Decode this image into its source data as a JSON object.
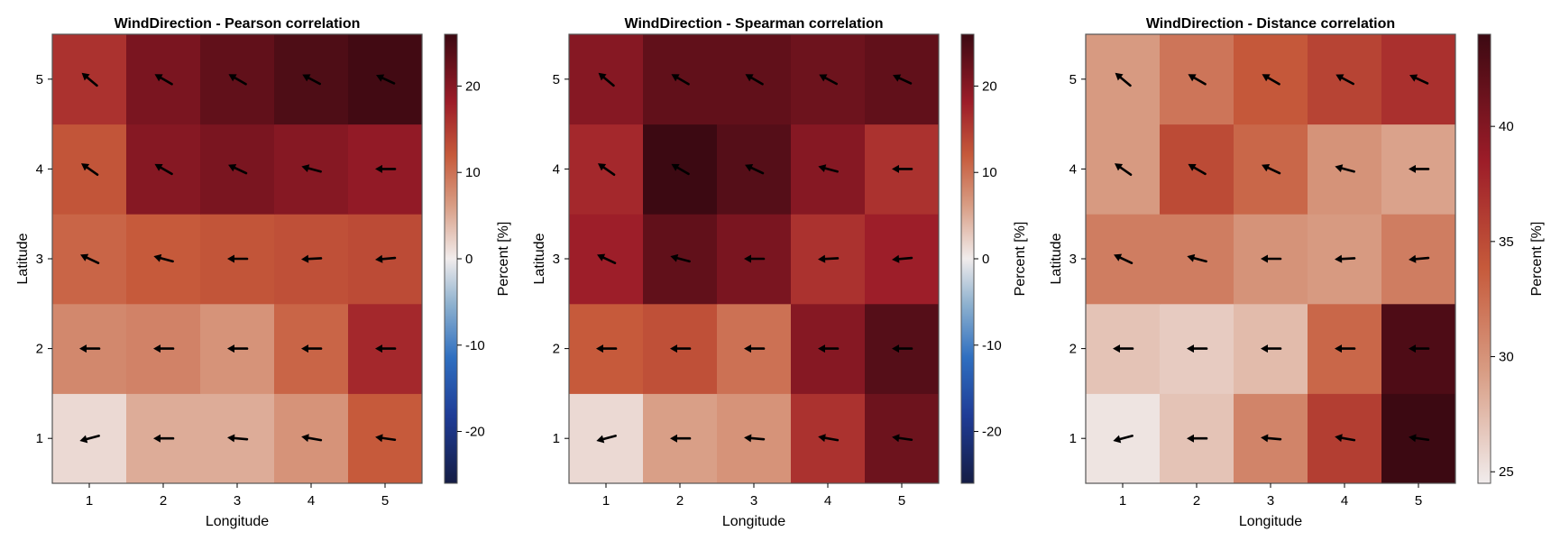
{
  "chart_data": [
    {
      "type": "heatmap",
      "title": "WindDirection - Pearson correlation",
      "xlabel": "Longitude",
      "ylabel": "Latitude",
      "colorbar_label": "Percent [%]",
      "x": [
        1,
        2,
        3,
        4,
        5
      ],
      "y": [
        1,
        2,
        3,
        4,
        5
      ],
      "colormap": "balance",
      "clim": [
        -26,
        26
      ],
      "colorbar_ticks": [
        -20,
        -10,
        0,
        10,
        20
      ],
      "values": [
        [
          1.5,
          5,
          5,
          7,
          12
        ],
        [
          8,
          8.5,
          7,
          11,
          17
        ],
        [
          11,
          12,
          12.5,
          13,
          13.5
        ],
        [
          12.5,
          20,
          21,
          20,
          19
        ],
        [
          16,
          21,
          23,
          24.5,
          25.5
        ]
      ],
      "arrow_angles_deg": [
        [
          195,
          180,
          175,
          170,
          172
        ],
        [
          180,
          180,
          180,
          180,
          180
        ],
        [
          155,
          165,
          180,
          183,
          185
        ],
        [
          145,
          150,
          155,
          165,
          180
        ],
        [
          140,
          150,
          150,
          152,
          155
        ]
      ]
    },
    {
      "type": "heatmap",
      "title": "WindDirection - Spearman correlation",
      "xlabel": "Longitude",
      "ylabel": "Latitude",
      "colorbar_label": "Percent [%]",
      "x": [
        1,
        2,
        3,
        4,
        5
      ],
      "y": [
        1,
        2,
        3,
        4,
        5
      ],
      "colormap": "balance",
      "clim": [
        -26,
        26
      ],
      "colorbar_ticks": [
        -20,
        -10,
        0,
        10,
        20
      ],
      "values": [
        [
          1.5,
          6,
          7,
          16,
          22
        ],
        [
          12,
          13,
          10,
          20,
          24
        ],
        [
          18,
          23,
          21,
          16,
          18
        ],
        [
          17,
          26,
          24,
          20,
          16
        ],
        [
          20,
          23,
          23,
          22,
          23
        ]
      ],
      "arrow_angles_deg": [
        [
          195,
          180,
          175,
          170,
          172
        ],
        [
          180,
          180,
          180,
          180,
          180
        ],
        [
          155,
          165,
          180,
          183,
          185
        ],
        [
          145,
          150,
          155,
          165,
          180
        ],
        [
          140,
          150,
          150,
          152,
          155
        ]
      ]
    },
    {
      "type": "heatmap",
      "title": "WindDirection - Distance correlation",
      "xlabel": "Longitude",
      "ylabel": "Latitude",
      "colorbar_label": "Percent [%]",
      "x": [
        1,
        2,
        3,
        4,
        5
      ],
      "y": [
        1,
        2,
        3,
        4,
        5
      ],
      "colormap": "balance_upper",
      "clim": [
        24.5,
        44
      ],
      "colorbar_ticks": [
        25,
        30,
        35,
        40
      ],
      "values": [
        [
          25,
          27,
          31,
          36,
          44
        ],
        [
          27,
          26.5,
          27.5,
          33,
          43
        ],
        [
          31.5,
          31.5,
          30,
          29.5,
          31.5
        ],
        [
          29.5,
          35,
          33,
          30,
          29
        ],
        [
          29.5,
          32,
          34,
          35.5,
          37
        ]
      ],
      "arrow_angles_deg": [
        [
          195,
          180,
          175,
          170,
          172
        ],
        [
          180,
          180,
          180,
          180,
          180
        ],
        [
          155,
          165,
          180,
          183,
          185
        ],
        [
          145,
          150,
          155,
          165,
          180
        ],
        [
          140,
          150,
          150,
          152,
          155
        ]
      ]
    }
  ]
}
